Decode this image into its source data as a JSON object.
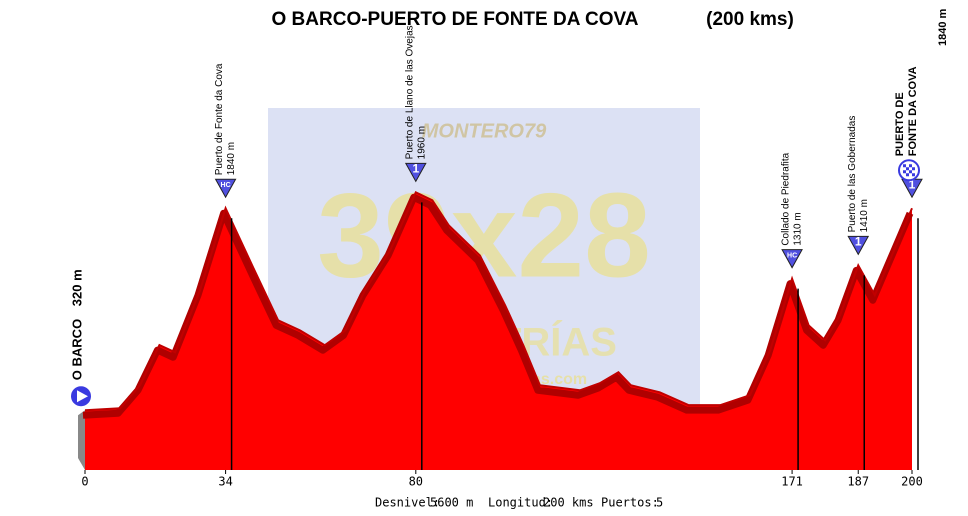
{
  "chart_data": {
    "type": "area",
    "title": "O BARCO-PUERTO DE FONTE DA COVA",
    "subtitle": "(200 kms)",
    "x": [
      0,
      8.5,
      13.3,
      18,
      21.8,
      27.8,
      34,
      41,
      46.7,
      52,
      58,
      63,
      67.7,
      73.8,
      80,
      84,
      88,
      95.5,
      101.6,
      106,
      110,
      119.7,
      124.5,
      129,
      132,
      139,
      146,
      153.6,
      160.8,
      165.7,
      171,
      175,
      179,
      182.6,
      187,
      191,
      200
    ],
    "values": [
      320,
      335,
      508,
      810,
      756,
      1222,
      1840,
      1372,
      997,
      921,
      809,
      921,
      1222,
      1523,
      1960,
      1900,
      1710,
      1485,
      1110,
      809,
      508,
      470,
      523,
      606,
      508,
      455,
      358,
      358,
      433,
      771,
      1310,
      959,
      846,
      1034,
      1410,
      1185,
      1840
    ],
    "color": "#ff0000",
    "xlim": [
      0,
      200
    ],
    "ylim": [
      -130,
      2000
    ],
    "xticks": [
      0,
      34,
      80,
      171,
      187,
      200
    ],
    "start": {
      "name": "O BARCO",
      "elevation": 320,
      "elevation_label": "320 m"
    },
    "peaks": [
      {
        "name": "Puerto de Fonte da Cova",
        "km": 34,
        "elevation": 1840,
        "elevation_label": "1840 m",
        "category": "HC"
      },
      {
        "name": "Puerto de Llano de las Ovejas",
        "km": 80,
        "elevation": 1960,
        "elevation_label": "1960 m",
        "category": "1"
      },
      {
        "name": "Collado de Piedrafita",
        "km": 171,
        "elevation": 1310,
        "elevation_label": "1310 m",
        "category": "HC"
      },
      {
        "name": "Puerto de las Gobernadas",
        "km": 187,
        "elevation": 1410,
        "elevation_label": "1410 m",
        "category": "1"
      },
      {
        "km": 200,
        "elevation": 1840,
        "category": "1"
      }
    ],
    "finish": {
      "name_lines": [
        "PUERTO DE",
        "FONTE DA COVA"
      ],
      "elevation": 1840,
      "elevation_label": "1840 m"
    },
    "stats": [
      {
        "label": "Desnivel:",
        "value": "5600 m"
      },
      {
        "label": "Longitud:",
        "value": "200 kms"
      },
      {
        "label": "Puertos:",
        "value": "5"
      }
    ],
    "watermark": {
      "author": "MONTERO79",
      "brand": "39x28",
      "sub": "ALTIMETRÍAS",
      "url": "http://39x28altimetrias.com"
    }
  }
}
